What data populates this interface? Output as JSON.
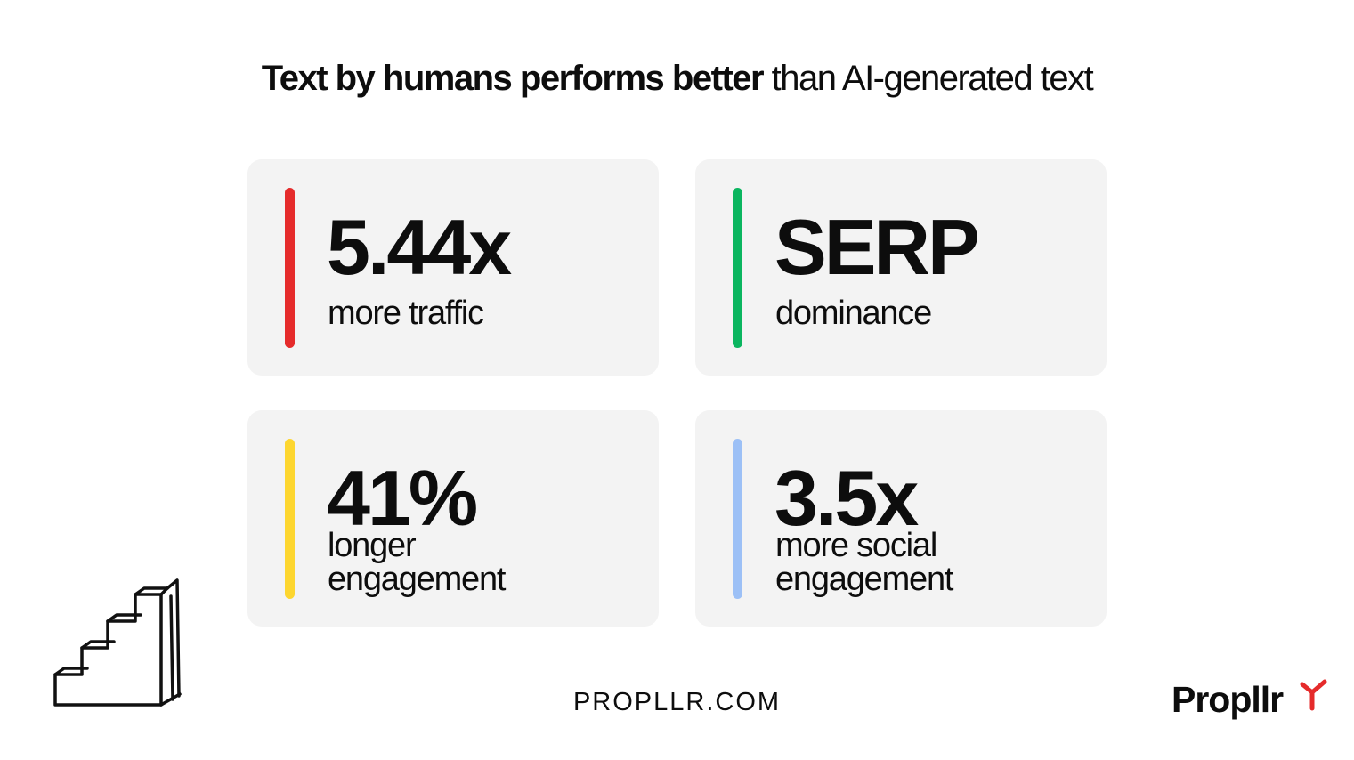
{
  "title": {
    "bold": "Text by humans performs better",
    "light": " than AI-generated text"
  },
  "cards": [
    {
      "value": "5.44x",
      "lines": [
        "more traffic"
      ],
      "color": "#e52b2b"
    },
    {
      "value": "SERP",
      "lines": [
        "dominance"
      ],
      "color": "#0ab55f"
    },
    {
      "value": "41%",
      "lines": [
        "longer",
        "engagement"
      ],
      "color": "#fdd62f"
    },
    {
      "value": "3.5x",
      "lines": [
        "more social",
        "engagement"
      ],
      "color": "#9cc0f6"
    }
  ],
  "footer": {
    "url": "PROPLLR.COM"
  },
  "logo": {
    "text": "Propllr",
    "accent": "#e52b2b"
  },
  "icons": {
    "decoration": "staircase-icon",
    "brand": "propeller-icon"
  }
}
